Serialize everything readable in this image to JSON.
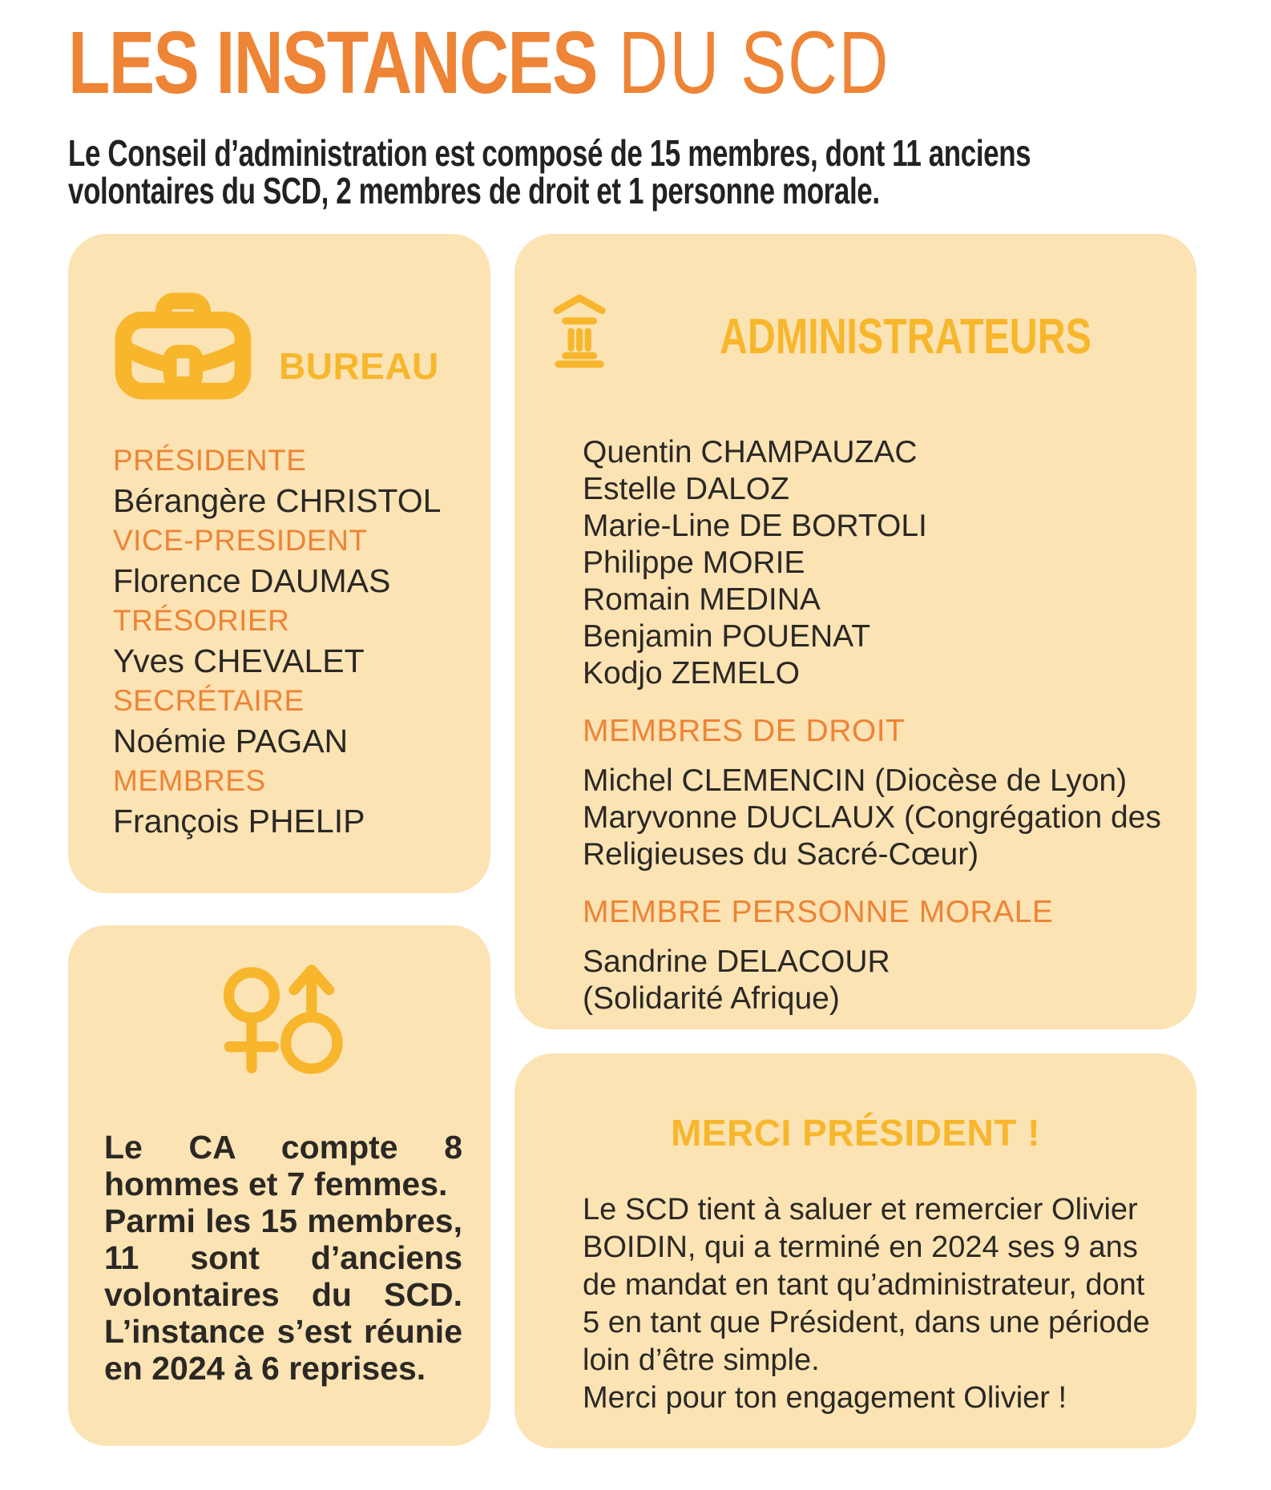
{
  "colors": {
    "orange": "#EE8435",
    "gold": "#F8B62C",
    "card_bg": "#FBE3B4",
    "text_dark": "#2B2824",
    "page_bg": "#FFFFFF"
  },
  "header": {
    "title_primary": "LES INSTANCES",
    "title_secondary": "DU SCD",
    "intro": "Le Conseil d’administration est composé de 15 membres, dont 11 anciens volontaires du SCD, 2 membres de droit et 1 personne morale."
  },
  "bureau_card": {
    "title": "BUREAU",
    "icon": "briefcase-icon",
    "roles": [
      {
        "label": "PRÉSIDENTE",
        "name": "Bérangère CHRISTOL"
      },
      {
        "label": "VICE-PRESIDENT",
        "name": "Florence DAUMAS"
      },
      {
        "label": "TRÉSORIER",
        "name": "Yves CHEVALET"
      },
      {
        "label": "SECRÉTAIRE",
        "name": "Noémie PAGAN"
      },
      {
        "label": "MEMBRES",
        "name": "François PHELIP"
      }
    ]
  },
  "admin_card": {
    "title": "ADMINISTRATEURS",
    "icon": "bank-icon",
    "members": [
      "Quentin CHAMPAUZAC",
      "Estelle DALOZ",
      "Marie-Line DE BORTOLI",
      "Philippe MORIE",
      "Romain MEDINA",
      "Benjamin POUENAT",
      "Kodjo ZEMELO"
    ],
    "membres_droit_heading": "MEMBRES DE DROIT",
    "membres_droit": [
      "Michel CLEMENCIN (Diocèse de Lyon)",
      "Maryvonne DUCLAUX (Congrégation des Religieuses du Sacré-Cœur)"
    ],
    "personne_morale_heading": "MEMBRE PERSONNE MORALE",
    "personne_morale": [
      "Sandrine DELACOUR",
      "(Solidarité Afrique)"
    ]
  },
  "parity_card": {
    "icon": "gender-symbols-icon",
    "paragraphs": [
      "Le CA compte 8 hommes et 7 femmes.",
      "Parmi les 15 membres, 11 sont d’anciens volontaires du SCD. L’instance s’est réunie en 2024 à 6 reprises."
    ]
  },
  "merci_card": {
    "title": "MERCI PRÉSIDENT !",
    "paragraphs": [
      "Le SCD tient à saluer et remercier Olivier BOIDIN, qui a terminé en 2024 ses 9 ans de mandat en tant qu’administrateur, dont 5 en tant que Président, dans une période loin d’être simple.",
      "Merci pour ton engagement Olivier !"
    ]
  }
}
